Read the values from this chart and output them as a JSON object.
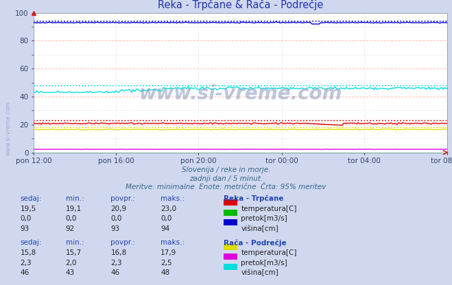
{
  "title": "Reka - Trpčane & Rača - Podrečje",
  "bg_color": "#d0d8f0",
  "plot_bg_color": "#ffffff",
  "grid_color_major_y": "#ffbbbb",
  "grid_color_minor": "#ddddee",
  "ylim": [
    0,
    100
  ],
  "yticks": [
    0,
    20,
    40,
    60,
    80,
    100
  ],
  "xlabel_times": [
    "pon 12:00",
    "pon 16:00",
    "pon 20:00",
    "tor 00:00",
    "tor 04:00",
    "tor 08:00"
  ],
  "n_points": 288,
  "subtitle1": "Slovenija / reke in morje.",
  "subtitle2": "zadnji dan / 5 minut.",
  "subtitle3": "Meritve: minimalne  Enote: metrične  Črta: 95% meritev",
  "watermark": "www.si-vreme.com",
  "table1_title": "Reka - Trpčane",
  "table1_rows": [
    {
      "label": "temperatura[C]",
      "color": "#dd0000",
      "sedaj": "19,5",
      "min": "19,1",
      "povpr": "20,9",
      "maks": "23,0"
    },
    {
      "label": "pretok[m3/s]",
      "color": "#00bb00",
      "sedaj": "0,0",
      "min": "0,0",
      "povpr": "0,0",
      "maks": "0,0"
    },
    {
      "label": "višina[cm]",
      "color": "#0000cc",
      "sedaj": "93",
      "min": "92",
      "povpr": "93",
      "maks": "94"
    }
  ],
  "table2_title": "Rača - Podrečje",
  "table2_rows": [
    {
      "label": "temperatura[C]",
      "color": "#dddd00",
      "sedaj": "15,8",
      "min": "15,7",
      "povpr": "16,8",
      "maks": "17,9"
    },
    {
      "label": "pretok[m3/s]",
      "color": "#dd00dd",
      "sedaj": "2,3",
      "min": "2,0",
      "povpr": "2,3",
      "maks": "2,5"
    },
    {
      "label": "višina[cm]",
      "color": "#00dddd",
      "sedaj": "46",
      "min": "43",
      "povpr": "46",
      "maks": "48"
    }
  ],
  "series_colors": {
    "reka_temp": "#dd0000",
    "reka_pretok": "#00bb00",
    "reka_visina": "#0000cc",
    "raca_temp": "#dddd00",
    "raca_pretok": "#dd00dd",
    "raca_visina": "#00dddd"
  },
  "dotted_lines": [
    {
      "color": "#dd0000",
      "y": 23.0
    },
    {
      "color": "#0000cc",
      "y": 94.0
    },
    {
      "color": "#dddd00",
      "y": 17.9
    },
    {
      "color": "#00dddd",
      "y": 48.0
    }
  ]
}
